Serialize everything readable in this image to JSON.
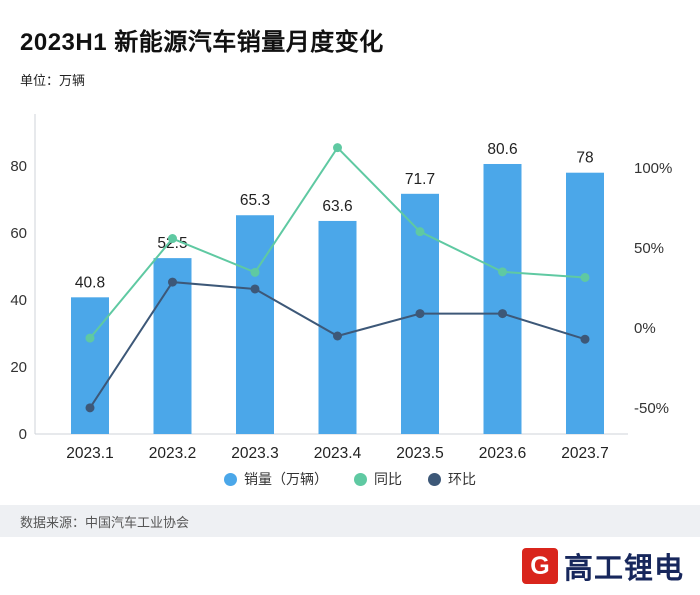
{
  "header": {
    "title": "2023H1 新能源汽车销量月度变化",
    "unit_label": "单位：万辆"
  },
  "chart_data": {
    "type": "bar+line",
    "categories": [
      "2023.1",
      "2023.2",
      "2023.3",
      "2023.4",
      "2023.5",
      "2023.6",
      "2023.7"
    ],
    "bar_series": {
      "name": "销量（万辆）",
      "values": [
        40.8,
        52.5,
        65.3,
        63.6,
        71.7,
        80.6,
        78
      ],
      "labels": [
        "40.8",
        "52.5",
        "65.3",
        "63.6",
        "71.7",
        "80.6",
        "78"
      ],
      "color": "#4BA7E9",
      "axis": "left"
    },
    "line_series": [
      {
        "name": "同比",
        "values": [
          -6.3,
          55.9,
          34.8,
          112.7,
          60.2,
          35.1,
          31.6
        ],
        "color": "#5FC9A2",
        "axis": "right"
      },
      {
        "name": "环比",
        "values": [
          -49.9,
          28.7,
          24.4,
          -5.0,
          9.0,
          9.0,
          -7.0
        ],
        "color": "#3D5878",
        "axis": "right"
      }
    ],
    "left_axis": {
      "ticks": [
        0,
        20,
        40,
        60,
        80
      ],
      "range": [
        0,
        88
      ]
    },
    "right_axis": {
      "ticks": [
        "-50%",
        "0%",
        "50%",
        "100%"
      ],
      "tick_values": [
        -50,
        0,
        50,
        100
      ],
      "range": [
        -66,
        115
      ]
    },
    "grid": false,
    "legend_position": "bottom",
    "axis_color": "#CFD3D9",
    "label_color": "#222222",
    "tick_color": "#333333"
  },
  "footer": {
    "source": "数据来源：中国汽车工业协会"
  },
  "logo": {
    "mark": "G",
    "text": "高工锂电",
    "red": "#D9251C",
    "navy": "#17275C"
  }
}
